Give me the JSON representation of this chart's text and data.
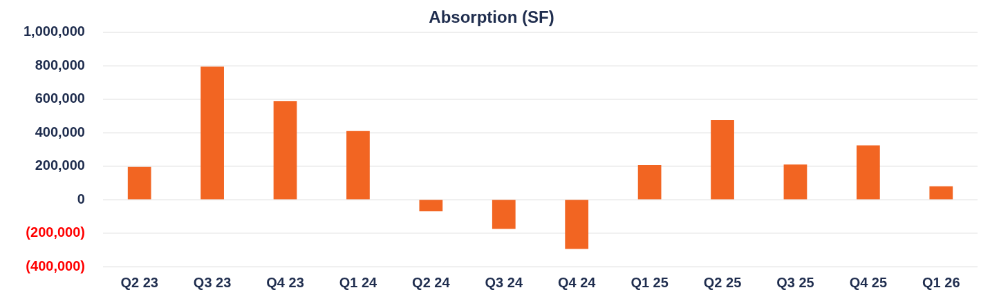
{
  "chart_data": {
    "type": "bar",
    "title": "Absorption (SF)",
    "categories": [
      "Q2 23",
      "Q3 23",
      "Q4 23",
      "Q1 24",
      "Q2 24",
      "Q3 24",
      "Q4 24",
      "Q1 25",
      "Q2 25",
      "Q3 25",
      "Q4 25",
      "Q1 26"
    ],
    "values": [
      195000,
      795000,
      590000,
      410000,
      -70000,
      -175000,
      -295000,
      207000,
      475000,
      210000,
      324000,
      80000
    ],
    "color": "#f26522",
    "ylim": [
      -400000,
      1000000
    ],
    "yticks": [
      {
        "value": -400000,
        "label": "(400,000)"
      },
      {
        "value": -200000,
        "label": "(200,000)"
      },
      {
        "value": 0,
        "label": "0"
      },
      {
        "value": 200000,
        "label": "200,000"
      },
      {
        "value": 400000,
        "label": "400,000"
      },
      {
        "value": 600000,
        "label": "600,000"
      },
      {
        "value": 800000,
        "label": "800,000"
      },
      {
        "value": 1000000,
        "label": "1,000,000"
      }
    ],
    "grid": "y"
  }
}
